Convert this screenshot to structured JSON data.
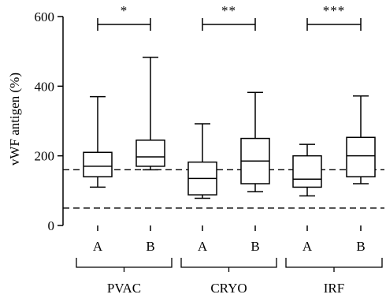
{
  "chart_data": {
    "type": "box",
    "ylabel": "vWF antigen (%)",
    "ylim": [
      0,
      600
    ],
    "yticks": [
      0,
      200,
      400,
      600
    ],
    "reference_lines": [
      160,
      50
    ],
    "groups": [
      {
        "name": "PVAC",
        "significance": "*",
        "boxes": [
          {
            "label": "A",
            "min": 110,
            "q1": 140,
            "median": 170,
            "q3": 210,
            "max": 370
          },
          {
            "label": "B",
            "min": 160,
            "q1": 170,
            "median": 197,
            "q3": 245,
            "max": 483
          }
        ]
      },
      {
        "name": "CRYO",
        "significance": "**",
        "boxes": [
          {
            "label": "A",
            "min": 78,
            "q1": 88,
            "median": 135,
            "q3": 182,
            "max": 292
          },
          {
            "label": "B",
            "min": 97,
            "q1": 120,
            "median": 185,
            "q3": 250,
            "max": 382
          }
        ]
      },
      {
        "name": "IRF",
        "significance": "***",
        "boxes": [
          {
            "label": "A",
            "min": 85,
            "q1": 110,
            "median": 133,
            "q3": 200,
            "max": 233
          },
          {
            "label": "B",
            "min": 120,
            "q1": 140,
            "median": 200,
            "q3": 253,
            "max": 372
          }
        ]
      }
    ]
  }
}
